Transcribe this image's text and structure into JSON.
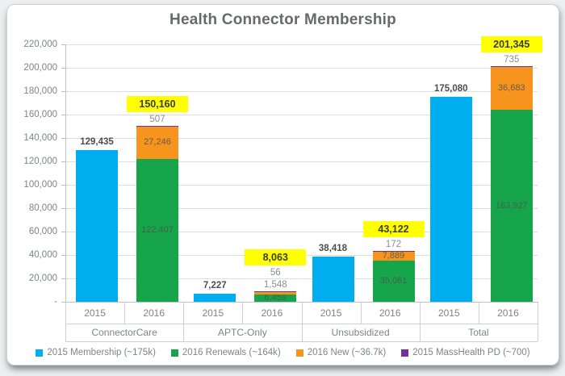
{
  "title": "Health Connector Membership",
  "chart_data": {
    "type": "bar",
    "stacked": true,
    "title": "Health Connector Membership",
    "y_axis": {
      "max": 220000,
      "tick_step": 20000,
      "tick_labels": [
        "220,000",
        "200,000",
        "180,000",
        "160,000",
        "140,000",
        "120,000",
        "100,000",
        "80,000",
        "60,000",
        "40,000",
        "20,000",
        "-"
      ],
      "grid": true
    },
    "colors": {
      "membership_2015": "#00ADEE",
      "renewals_2016": "#16A54B",
      "new_2016": "#F7941E",
      "masshealth_2015": "#7030A0",
      "highlight": "#FFFF00"
    },
    "groups": [
      {
        "label": "ConnectorCare",
        "slug": "connectorcare",
        "bar_2015": {
          "year": "2015",
          "value": 129435,
          "value_label": "129,435"
        },
        "bar_2016": {
          "year": "2016",
          "total": 150160,
          "total_label": "150,160",
          "renewals": {
            "value": 122407,
            "label": "122,407"
          },
          "new": {
            "value": 27246,
            "label": "27,246"
          },
          "masshealth": {
            "value": 507,
            "label": "507"
          }
        }
      },
      {
        "label": "APTC-Only",
        "slug": "aptc-only",
        "bar_2015": {
          "year": "2015",
          "value": 7227,
          "value_label": "7,227"
        },
        "bar_2016": {
          "year": "2016",
          "total": 8063,
          "total_label": "8,063",
          "renewals": {
            "value": 6459,
            "label": "6,459"
          },
          "new": {
            "value": 1548,
            "label": "1,548"
          },
          "masshealth": {
            "value": 56,
            "label": "56"
          }
        }
      },
      {
        "label": "Unsubsidized",
        "slug": "unsubsidized",
        "bar_2015": {
          "year": "2015",
          "value": 38418,
          "value_label": "38,418"
        },
        "bar_2016": {
          "year": "2016",
          "total": 43122,
          "total_label": "43,122",
          "renewals": {
            "value": 35061,
            "label": "35,061"
          },
          "new": {
            "value": 7889,
            "label": "7,889"
          },
          "masshealth": {
            "value": 172,
            "label": "172"
          }
        }
      },
      {
        "label": "Total",
        "slug": "total",
        "bar_2015": {
          "year": "2015",
          "value": 175080,
          "value_label": "175,080"
        },
        "bar_2016": {
          "year": "2016",
          "total": 201345,
          "total_label": "201,345",
          "renewals": {
            "value": 163927,
            "label": "163,927"
          },
          "new": {
            "value": 36683,
            "label": "36,683"
          },
          "masshealth": {
            "value": 735,
            "label": "735"
          }
        }
      }
    ],
    "legend": [
      {
        "key": "membership-2015",
        "label": "2015 Membership (~175k)",
        "color": "#00ADEE"
      },
      {
        "key": "renewals-2016",
        "label": "2016 Renewals (~164k)",
        "color": "#16A54B"
      },
      {
        "key": "new-2016",
        "label": "2016 New (~36.7k)",
        "color": "#F7941E"
      },
      {
        "key": "masshealth-2015",
        "label": "2015 MassHealth PD (~700)",
        "color": "#7030A0"
      }
    ]
  }
}
